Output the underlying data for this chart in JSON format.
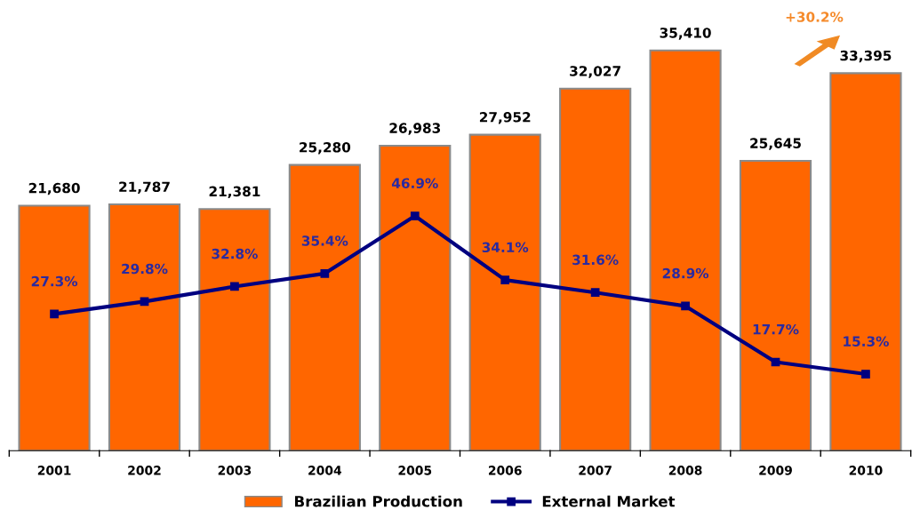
{
  "chart_data": {
    "type": "bar",
    "categories": [
      "2001",
      "2002",
      "2003",
      "2004",
      "2005",
      "2006",
      "2007",
      "2008",
      "2009",
      "2010"
    ],
    "series": [
      {
        "name": "Brazilian Production",
        "color": "#ff6600",
        "values": [
          21680,
          21787,
          21381,
          25280,
          26983,
          27952,
          32027,
          35410,
          25645,
          33395
        ],
        "value_labels": [
          "21,680",
          "21,787",
          "21,381",
          "25,280",
          "26,983",
          "27,952",
          "32,027",
          "35,410",
          "25,645",
          "33,395"
        ]
      },
      {
        "name": "External Market",
        "type": "line",
        "axis": "y2",
        "color": "#000080",
        "values": [
          27.3,
          29.8,
          32.8,
          35.4,
          46.9,
          34.1,
          31.6,
          28.9,
          17.7,
          15.3
        ],
        "value_labels": [
          "27.3%",
          "29.8%",
          "32.8%",
          "35.4%",
          "46.9%",
          "34.1%",
          "31.6%",
          "28.9%",
          "17.7%",
          "15.3%"
        ]
      }
    ],
    "tick_labels": "x",
    "grid": false,
    "legend": "bottom",
    "marker": "square",
    "line_style": "solid",
    "annotations": [
      "+30.2%"
    ]
  }
}
